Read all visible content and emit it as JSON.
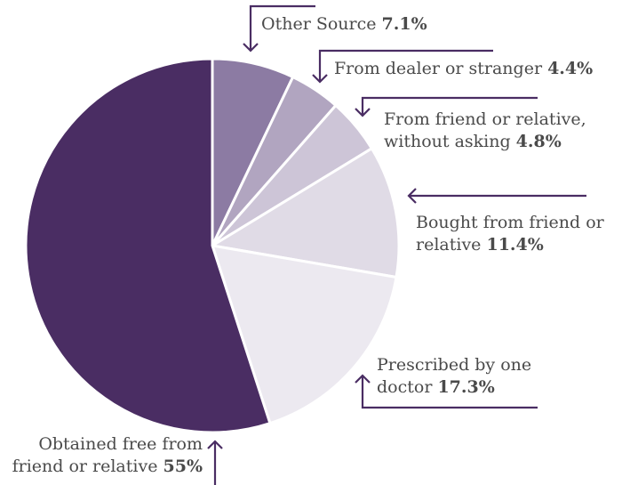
{
  "chart_data": {
    "type": "pie",
    "slices": [
      {
        "label_lines": [
          "Other Source"
        ],
        "value": 7.1,
        "value_label": "7.1%",
        "color": "#8c7ba3"
      },
      {
        "label_lines": [
          "From dealer or stranger"
        ],
        "value": 4.4,
        "value_label": "4.4%",
        "color": "#b1a5c0"
      },
      {
        "label_lines": [
          "From friend or relative,",
          "without asking"
        ],
        "value": 4.8,
        "value_label": "4.8%",
        "color": "#cdc5d7"
      },
      {
        "label_lines": [
          "Bought from friend or",
          "relative"
        ],
        "value": 11.4,
        "value_label": "11.4%",
        "color": "#e0dbe6"
      },
      {
        "label_lines": [
          "Prescribed by one",
          "doctor"
        ],
        "value": 17.3,
        "value_label": "17.3%",
        "color": "#ece9f0"
      },
      {
        "label_lines": [
          "Obtained free from",
          "friend or relative"
        ],
        "value": 55,
        "value_label": "55%",
        "color": "#4a2d63"
      }
    ],
    "start_angle_deg": 0,
    "direction": "clockwise",
    "legend": "none"
  }
}
